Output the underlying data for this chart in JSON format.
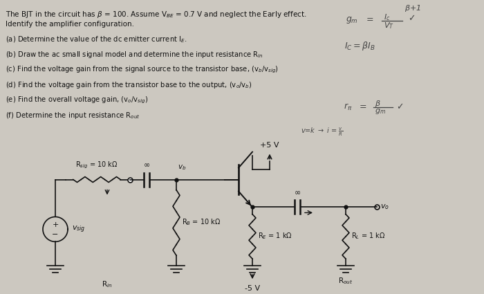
{
  "bg_color": "#ccc8c0",
  "text_color": "#111111",
  "circuit_line_color": "#111111",
  "handwritten_color": "#444444",
  "vcc": "+5 V",
  "vee": "-5 V",
  "text_lines": [
    "The BJT in the circuit has β = 100. Assume V$_{BE}$ = 0.7 V and neglect the Early effect.",
    "Identify the amplifier configuration."
  ],
  "parts": [
    "(a) Determine the value of the dc emitter current I$_E$.",
    "(b) Draw the ac small signal model and determine the input resistance R$_{in}$",
    "(c) Find the voltage gain from the signal source to the transistor base, (v$_b$/v$_{sig}$)",
    "(d) Find the voltage gain from the transistor base to the output, (v$_o$/v$_b$)",
    "(e) Find the overall voltage gain, (v$_o$/v$_{sig}$)",
    "(f) Determine the input resistance R$_{out}$"
  ]
}
